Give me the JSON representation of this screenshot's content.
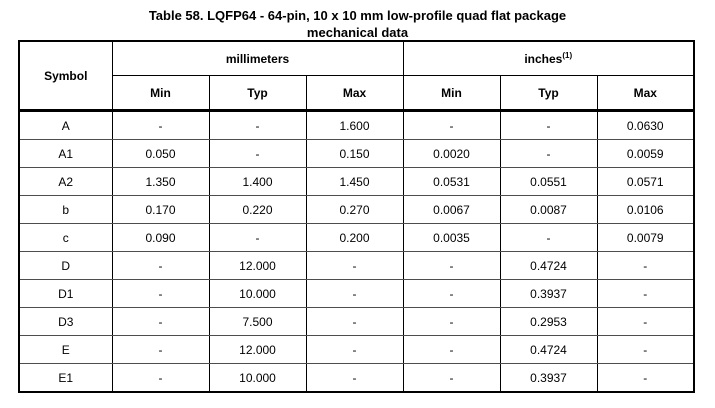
{
  "title": {
    "line1": "Table 58. LQFP64 - 64-pin, 10 x 10 mm low-profile quad flat package",
    "line2": "mechanical data"
  },
  "table": {
    "header": {
      "symbol": "Symbol",
      "millimeters": "millimeters",
      "inches": "inches",
      "inches_note": "(1)",
      "subcolumns": [
        "Min",
        "Typ",
        "Max",
        "Min",
        "Typ",
        "Max"
      ]
    },
    "rows": [
      {
        "symbol": "A",
        "values": [
          "-",
          "-",
          "1.600",
          "-",
          "-",
          "0.0630"
        ]
      },
      {
        "symbol": "A1",
        "values": [
          "0.050",
          "-",
          "0.150",
          "0.0020",
          "-",
          "0.0059"
        ]
      },
      {
        "symbol": "A2",
        "values": [
          "1.350",
          "1.400",
          "1.450",
          "0.0531",
          "0.0551",
          "0.0571"
        ]
      },
      {
        "symbol": "b",
        "values": [
          "0.170",
          "0.220",
          "0.270",
          "0.0067",
          "0.0087",
          "0.0106"
        ]
      },
      {
        "symbol": "c",
        "values": [
          "0.090",
          "-",
          "0.200",
          "0.0035",
          "-",
          "0.0079"
        ]
      },
      {
        "symbol": "D",
        "values": [
          "-",
          "12.000",
          "-",
          "-",
          "0.4724",
          "-"
        ]
      },
      {
        "symbol": "D1",
        "values": [
          "-",
          "10.000",
          "-",
          "-",
          "0.3937",
          "-"
        ]
      },
      {
        "symbol": "D3",
        "values": [
          "-",
          "7.500",
          "-",
          "-",
          "0.2953",
          "-"
        ]
      },
      {
        "symbol": "E",
        "values": [
          "-",
          "12.000",
          "-",
          "-",
          "0.4724",
          "-"
        ]
      },
      {
        "symbol": "E1",
        "values": [
          "-",
          "10.000",
          "-",
          "-",
          "0.3937",
          "-"
        ]
      }
    ]
  },
  "colors": {
    "background": "#ffffff",
    "text": "#000000",
    "outer_border": "#000000",
    "row_divider": "#4d4d4d"
  }
}
